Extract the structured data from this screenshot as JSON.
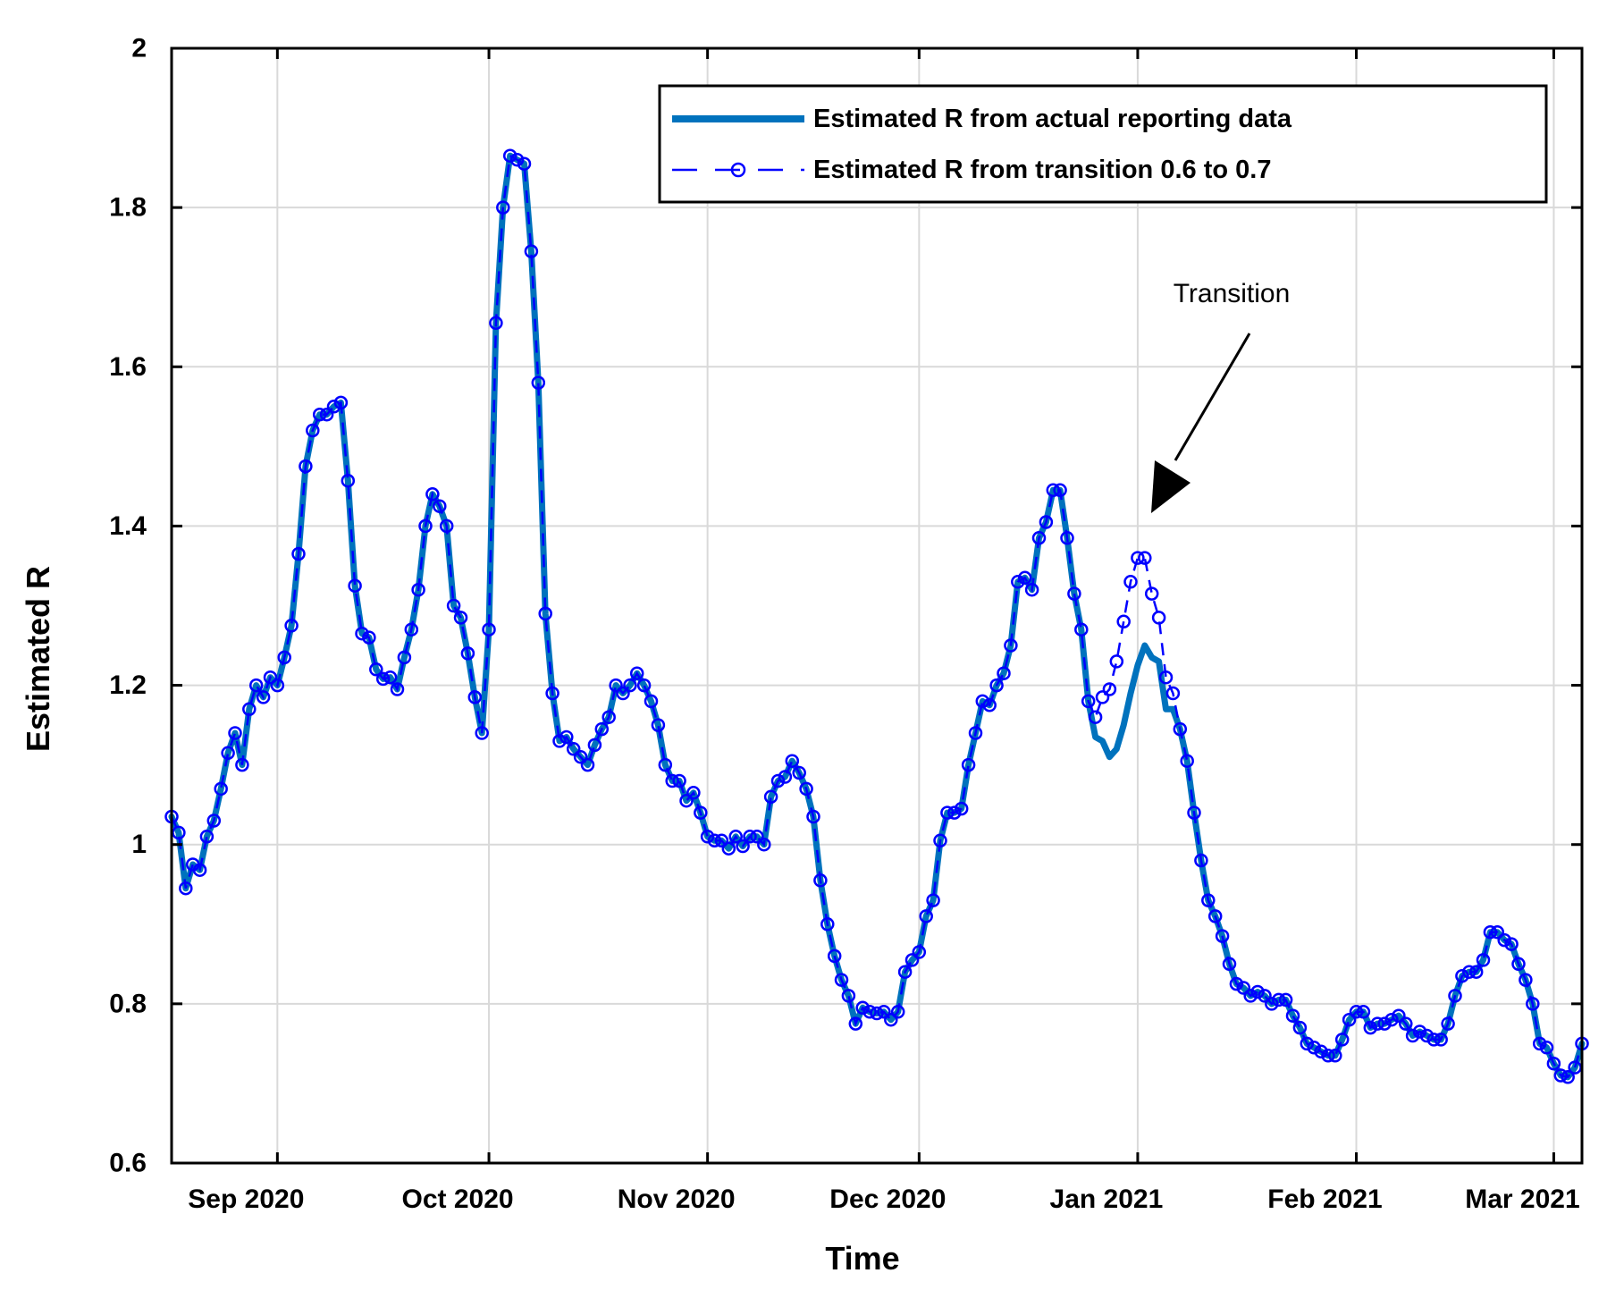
{
  "chart_data": {
    "type": "line",
    "title": "",
    "xlabel": "Time",
    "ylabel": "Estimated R",
    "ylim": [
      0.6,
      2.0
    ],
    "x_range": [
      "2020-08-17",
      "2021-03-05"
    ],
    "yticks": [
      "0.6",
      "0.8",
      "1",
      "1.2",
      "1.4",
      "1.6",
      "1.8",
      "2"
    ],
    "xticks": [
      {
        "label": "Sep 2020",
        "date": "2020-09-01"
      },
      {
        "label": "Oct 2020",
        "date": "2020-10-01"
      },
      {
        "label": "Nov 2020",
        "date": "2020-11-01"
      },
      {
        "label": "Dec 2020",
        "date": "2020-12-01"
      },
      {
        "label": "Jan 2021",
        "date": "2021-01-01"
      },
      {
        "label": "Feb 2021",
        "date": "2021-02-01"
      },
      {
        "label": "Mar 2021",
        "date": "2021-03-01"
      }
    ],
    "grid": true,
    "legend_position": "top-right",
    "start_date": "2020-08-17",
    "series": [
      {
        "name": "Estimated R from actual reporting data",
        "color": "#0072BD",
        "style": "solid-thick",
        "values": [
          1.035,
          1.015,
          0.945,
          0.975,
          0.968,
          1.01,
          1.03,
          1.07,
          1.115,
          1.14,
          1.1,
          1.17,
          1.2,
          1.185,
          1.21,
          1.2,
          1.235,
          1.275,
          1.365,
          1.475,
          1.52,
          1.54,
          1.54,
          1.55,
          1.555,
          1.457,
          1.325,
          1.265,
          1.26,
          1.22,
          1.208,
          1.21,
          1.195,
          1.235,
          1.27,
          1.32,
          1.4,
          1.44,
          1.425,
          1.4,
          1.3,
          1.285,
          1.24,
          1.185,
          1.14,
          1.27,
          1.655,
          1.8,
          1.865,
          1.86,
          1.855,
          1.745,
          1.58,
          1.29,
          1.19,
          1.13,
          1.135,
          1.12,
          1.11,
          1.1,
          1.125,
          1.145,
          1.16,
          1.2,
          1.19,
          1.2,
          1.215,
          1.2,
          1.18,
          1.15,
          1.1,
          1.08,
          1.08,
          1.055,
          1.065,
          1.04,
          1.01,
          1.005,
          1.005,
          0.995,
          1.01,
          0.998,
          1.01,
          1.01,
          1.0,
          1.06,
          1.08,
          1.085,
          1.105,
          1.09,
          1.07,
          1.035,
          0.955,
          0.9,
          0.86,
          0.83,
          0.81,
          0.775,
          0.795,
          0.79,
          0.788,
          0.79,
          0.78,
          0.79,
          0.84,
          0.855,
          0.865,
          0.91,
          0.93,
          1.005,
          1.04,
          1.04,
          1.045,
          1.1,
          1.14,
          1.18,
          1.175,
          1.2,
          1.215,
          1.25,
          1.33,
          1.335,
          1.32,
          1.385,
          1.405,
          1.445,
          1.445,
          1.385,
          1.315,
          1.27,
          1.18,
          1.135,
          1.13,
          1.11,
          1.12,
          1.15,
          1.19,
          1.225,
          1.25,
          1.235,
          1.23,
          1.17,
          1.17,
          1.145,
          1.105,
          1.04,
          0.98,
          0.93,
          0.91,
          0.885,
          0.85,
          0.825,
          0.82,
          0.81,
          0.815,
          0.81,
          0.8,
          0.805,
          0.805,
          0.785,
          0.77,
          0.75,
          0.745,
          0.74,
          0.735,
          0.735,
          0.755,
          0.78,
          0.79,
          0.79,
          0.77,
          0.775,
          0.775,
          0.78,
          0.785,
          0.775,
          0.76,
          0.765,
          0.76,
          0.755,
          0.755,
          0.775,
          0.81,
          0.835,
          0.84,
          0.84,
          0.855,
          0.89,
          0.89,
          0.88,
          0.875,
          0.85,
          0.83,
          0.8,
          0.75,
          0.745,
          0.725,
          0.71,
          0.708,
          0.72,
          0.75
        ]
      },
      {
        "name": "Estimated R from transition 0.6 to 0.7",
        "color": "#0000FF",
        "style": "dashed-circles",
        "values": [
          1.035,
          1.015,
          0.945,
          0.975,
          0.968,
          1.01,
          1.03,
          1.07,
          1.115,
          1.14,
          1.1,
          1.17,
          1.2,
          1.185,
          1.21,
          1.2,
          1.235,
          1.275,
          1.365,
          1.475,
          1.52,
          1.54,
          1.54,
          1.55,
          1.555,
          1.457,
          1.325,
          1.265,
          1.26,
          1.22,
          1.208,
          1.21,
          1.195,
          1.235,
          1.27,
          1.32,
          1.4,
          1.44,
          1.425,
          1.4,
          1.3,
          1.285,
          1.24,
          1.185,
          1.14,
          1.27,
          1.655,
          1.8,
          1.865,
          1.86,
          1.855,
          1.745,
          1.58,
          1.29,
          1.19,
          1.13,
          1.135,
          1.12,
          1.11,
          1.1,
          1.125,
          1.145,
          1.16,
          1.2,
          1.19,
          1.2,
          1.215,
          1.2,
          1.18,
          1.15,
          1.1,
          1.08,
          1.08,
          1.055,
          1.065,
          1.04,
          1.01,
          1.005,
          1.005,
          0.995,
          1.01,
          0.998,
          1.01,
          1.01,
          1.0,
          1.06,
          1.08,
          1.085,
          1.105,
          1.09,
          1.07,
          1.035,
          0.955,
          0.9,
          0.86,
          0.83,
          0.81,
          0.775,
          0.795,
          0.79,
          0.788,
          0.79,
          0.78,
          0.79,
          0.84,
          0.855,
          0.865,
          0.91,
          0.93,
          1.005,
          1.04,
          1.04,
          1.045,
          1.1,
          1.14,
          1.18,
          1.175,
          1.2,
          1.215,
          1.25,
          1.33,
          1.335,
          1.32,
          1.385,
          1.405,
          1.445,
          1.445,
          1.385,
          1.315,
          1.27,
          1.18,
          1.16,
          1.185,
          1.195,
          1.23,
          1.28,
          1.33,
          1.36,
          1.36,
          1.315,
          1.285,
          1.21,
          1.19,
          1.145,
          1.105,
          1.04,
          0.98,
          0.93,
          0.91,
          0.885,
          0.85,
          0.825,
          0.82,
          0.81,
          0.815,
          0.81,
          0.8,
          0.805,
          0.805,
          0.785,
          0.77,
          0.75,
          0.745,
          0.74,
          0.735,
          0.735,
          0.755,
          0.78,
          0.79,
          0.79,
          0.77,
          0.775,
          0.775,
          0.78,
          0.785,
          0.775,
          0.76,
          0.765,
          0.76,
          0.755,
          0.755,
          0.775,
          0.81,
          0.835,
          0.84,
          0.84,
          0.855,
          0.89,
          0.89,
          0.88,
          0.875,
          0.85,
          0.83,
          0.8,
          0.75,
          0.745,
          0.725,
          0.71,
          0.708,
          0.72,
          0.75
        ]
      }
    ],
    "annotations": [
      {
        "text": "Transition",
        "points_to_date": "2021-01-02",
        "points_to_value": 1.41
      }
    ]
  }
}
